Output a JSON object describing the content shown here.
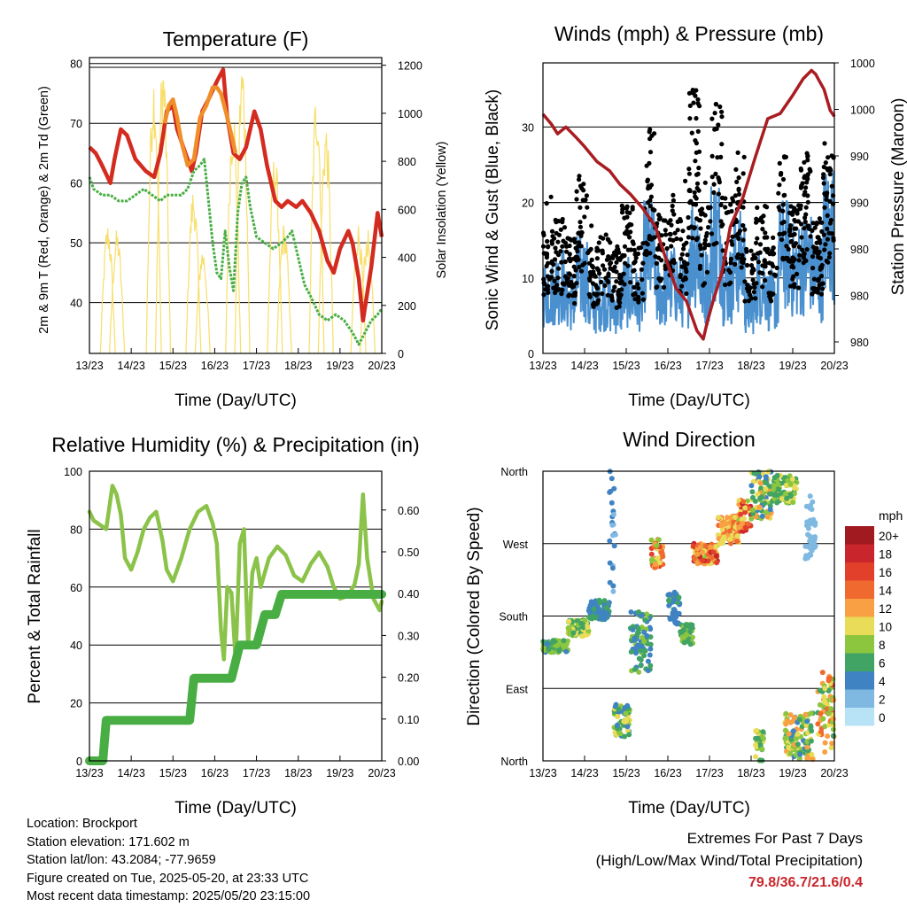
{
  "panels": {
    "temperature": {
      "title": "Temperature (F)",
      "ylabel_left": "2m & 9m T (Red, Orange) & 2m Td (Green)",
      "ylabel_right": "Solar Insolation (Yellow)",
      "xlabel": "Time (Day/UTC)"
    },
    "winds": {
      "title": "Winds (mph) & Pressure (mb)",
      "ylabel_left": "Sonic Wind & Gust (Blue, Black)",
      "ylabel_right": "Station Pressure (Maroon)",
      "xlabel": "Time (Day/UTC)"
    },
    "humidity": {
      "title": "Relative Humidity (%) & Precipitation (in)",
      "ylabel_left": "Percent & Total Rainfall",
      "xlabel": "Time (Day/UTC)"
    },
    "direction": {
      "title": "Wind Direction",
      "ylabel_left": "Direction (Colored By Speed)",
      "xlabel": "Time (Day/UTC)",
      "legend_title": "mph"
    }
  },
  "info": {
    "location": "Location: Brockport",
    "elevation": "Station elevation: 171.602 m",
    "latlon": "Station lat/lon: 43.2084; -77.9659",
    "created": "Figure created on Tue, 2025-05-20, at 23:33 UTC",
    "recent": "Most recent data timestamp: 2025/05/20 23:15:00"
  },
  "extremes": {
    "line1": "Extremes For Past 7 Days",
    "line2": "(High/Low/Max Wind/Total Precipitation)",
    "values": "79.8/36.7/21.6/0.4"
  },
  "chart_data": [
    {
      "id": "temperature",
      "type": "line",
      "title": "Temperature (F)",
      "xlabel": "Time (Day/UTC)",
      "ylabel": "2m & 9m T (Red, Orange) & 2m Td (Green)",
      "ylabel_right": "Solar Insolation (Yellow)",
      "x_ticks": [
        "13/23",
        "14/23",
        "15/23",
        "16/23",
        "17/23",
        "18/23",
        "19/23",
        "20/23"
      ],
      "xlim": [
        0,
        7
      ],
      "ylim": [
        31.5,
        81
      ],
      "yticks": [
        40,
        50,
        60,
        70,
        80
      ],
      "ylim_right": [
        0,
        1232
      ],
      "yticks_right": [
        0,
        200,
        400,
        600,
        800,
        1000,
        1200
      ],
      "grid": true,
      "series": [
        {
          "color": "#d42b20",
          "x": [
            0,
            0.15,
            0.3,
            0.5,
            0.6,
            0.75,
            0.9,
            1.1,
            1.35,
            1.55,
            1.7,
            1.85,
            2.0,
            2.1,
            2.3,
            2.45,
            2.55,
            2.7,
            2.85,
            3.05,
            3.2,
            3.3,
            3.45,
            3.6,
            3.75,
            3.95,
            4.1,
            4.25,
            4.45,
            4.6,
            4.75,
            4.95,
            5.1,
            5.3,
            5.5,
            5.7,
            5.85,
            6.0,
            6.2,
            6.3,
            6.45,
            6.55,
            6.75,
            6.9,
            7.0
          ],
          "y": [
            66,
            65,
            63,
            60,
            64,
            69,
            68,
            64,
            62,
            61,
            65,
            72,
            73,
            69,
            65,
            62,
            65,
            72,
            74,
            77,
            79,
            71,
            65,
            64,
            66,
            72,
            69,
            63,
            57,
            56,
            57,
            56,
            57,
            55,
            52,
            47,
            45,
            49,
            52,
            50,
            44,
            37,
            46,
            55,
            51
          ]
        },
        {
          "color": "#f08e2a",
          "x": [
            1.8,
            1.9,
            2.0,
            2.1,
            2.2,
            2.35,
            2.5,
            2.65,
            2.8,
            2.95,
            3.05,
            3.15,
            3.3,
            3.5
          ],
          "y": [
            70,
            73,
            74,
            71,
            67,
            63,
            64,
            71,
            73,
            76,
            76,
            75,
            71,
            65
          ]
        },
        {
          "color": "#48ae44",
          "x": [
            0,
            0.1,
            0.3,
            0.5,
            0.7,
            0.9,
            1.1,
            1.3,
            1.5,
            1.7,
            1.85,
            2.0,
            2.2,
            2.35,
            2.5,
            2.65,
            2.75,
            2.85,
            2.95,
            3.05,
            3.15,
            3.25,
            3.35,
            3.45,
            3.55,
            3.65,
            3.75,
            3.85,
            4.0,
            4.2,
            4.4,
            4.6,
            4.75,
            4.85,
            4.95,
            5.05,
            5.15,
            5.3,
            5.5,
            5.7,
            5.9,
            6.1,
            6.3,
            6.45,
            6.6,
            6.75,
            6.9,
            7.0
          ],
          "y": [
            61,
            59,
            58,
            58,
            57,
            57,
            58,
            59,
            58,
            57,
            58,
            58,
            58,
            59,
            62,
            63,
            64,
            57,
            50,
            45,
            44,
            52,
            46,
            42,
            55,
            60,
            61,
            56,
            51,
            50,
            49,
            50,
            51,
            52,
            49,
            46,
            43,
            41,
            38,
            37,
            38,
            37,
            35,
            33,
            35,
            37,
            38,
            39
          ]
        }
      ],
      "solar": {
        "color": "#f8de6a",
        "day_centers": [
          0.55,
          1.65,
          2.6,
          3.55,
          4.55,
          5.55,
          6.55
        ],
        "peaks": [
          550,
          520,
          1200,
          1250,
          700,
          450,
          1050,
          1250,
          850,
          550,
          1130,
          980
        ]
      }
    },
    {
      "id": "winds",
      "type": "scatter",
      "title": "Winds (mph) & Pressure (mb)",
      "xlabel": "Time (Day/UTC)",
      "ylabel": "Sonic Wind & Gust (Blue, Black)",
      "ylabel_right": "Station Pressure (Maroon)",
      "x_ticks": [
        "13/23",
        "14/23",
        "15/23",
        "16/23",
        "17/23",
        "18/23",
        "19/23",
        "20/23"
      ],
      "xlim": [
        0,
        7
      ],
      "ylim": [
        0,
        38.5
      ],
      "yticks": [
        0,
        10,
        20,
        30
      ],
      "yticks_right": [
        "980",
        "980",
        "980",
        "990",
        "990",
        "1000",
        "1000"
      ],
      "grid": true,
      "wind_mean_by_half_day": [
        8,
        9,
        7,
        10,
        6,
        7,
        6,
        8,
        7,
        13,
        8,
        9,
        8,
        14,
        9,
        15,
        9,
        12,
        6,
        9,
        7,
        13,
        11,
        12,
        10,
        16
      ],
      "gust_mean_by_half_day": [
        12,
        13,
        11,
        17,
        10,
        12,
        10,
        14,
        11,
        21,
        13,
        15,
        13,
        25,
        14,
        24,
        15,
        19,
        10,
        14,
        11,
        19,
        14,
        19,
        13,
        20
      ],
      "pressure": {
        "color": "#a91d22",
        "x": [
          0,
          0.2,
          0.35,
          0.55,
          0.8,
          1.0,
          1.3,
          1.6,
          1.85,
          2.1,
          2.4,
          2.7,
          2.95,
          3.2,
          3.45,
          3.7,
          3.85,
          3.95,
          4.1,
          4.3,
          4.5,
          4.8,
          5.1,
          5.4,
          5.7,
          6.0,
          6.25,
          6.45,
          6.55,
          6.65,
          6.75,
          6.9,
          7.0
        ],
        "y": [
          31.7,
          30.4,
          29.1,
          30.0,
          28.6,
          27.4,
          25.4,
          24.2,
          22.4,
          21.1,
          19.2,
          16.8,
          12.6,
          8.6,
          6.9,
          3.0,
          1.9,
          4.2,
          7.2,
          10.7,
          16.8,
          20.6,
          26.0,
          31.1,
          31.8,
          34.2,
          36.4,
          37.5,
          37.0,
          36.0,
          35.0,
          32.2,
          31.4
        ]
      }
    },
    {
      "id": "humidity",
      "type": "line",
      "title": "Relative Humidity (%) & Precipitation (in)",
      "xlabel": "Time (Day/UTC)",
      "ylabel": "Percent & Total Rainfall",
      "x_ticks": [
        "13/23",
        "14/23",
        "15/23",
        "16/23",
        "17/23",
        "18/23",
        "19/23",
        "20/23"
      ],
      "xlim": [
        0,
        7
      ],
      "ylim": [
        0,
        100
      ],
      "yticks": [
        0,
        20,
        40,
        60,
        80,
        100
      ],
      "yticks_right": [
        "0.00",
        "0.10",
        "0.20",
        "0.30",
        "0.40",
        "0.50",
        "0.60"
      ],
      "grid": true,
      "series": [
        {
          "color": "#8bc34a",
          "x": [
            0,
            0.1,
            0.2,
            0.4,
            0.55,
            0.65,
            0.75,
            0.85,
            1.0,
            1.15,
            1.3,
            1.45,
            1.6,
            1.75,
            1.85,
            2.0,
            2.2,
            2.4,
            2.6,
            2.8,
            2.95,
            3.05,
            3.15,
            3.22,
            3.3,
            3.4,
            3.5,
            3.6,
            3.7,
            3.8,
            3.9,
            4.0,
            4.1,
            4.3,
            4.5,
            4.7,
            4.9,
            5.1,
            5.3,
            5.5,
            5.7,
            5.85,
            6.0,
            6.2,
            6.35,
            6.45,
            6.55,
            6.65,
            6.8,
            6.95,
            7.0
          ],
          "y": [
            86,
            83,
            82,
            80,
            95,
            92,
            85,
            70,
            66,
            72,
            80,
            84,
            86,
            76,
            66,
            62,
            70,
            80,
            86,
            88,
            82,
            75,
            45,
            35,
            60,
            58,
            35,
            75,
            80,
            40,
            65,
            70,
            60,
            70,
            74,
            71,
            64,
            62,
            68,
            72,
            67,
            60,
            56,
            57,
            61,
            68,
            92,
            70,
            56,
            52,
            55
          ]
        },
        {
          "color": "#48ae44",
          "step": true,
          "x": [
            0,
            0.32,
            0.4,
            1.7,
            1.8,
            2.4,
            2.5,
            3.05,
            3.15,
            3.4,
            3.6,
            4.0,
            4.2,
            4.45,
            4.6,
            7.0
          ],
          "y": [
            0,
            0,
            14,
            14,
            14,
            14,
            28.5,
            28.5,
            28.5,
            28.5,
            40,
            40,
            50.5,
            50.5,
            57.5,
            57.5
          ]
        }
      ]
    },
    {
      "id": "direction",
      "type": "scatter",
      "title": "Wind Direction",
      "xlabel": "Time (Day/UTC)",
      "ylabel": "Direction (Colored By Speed)",
      "x_ticks": [
        "13/23",
        "14/23",
        "15/23",
        "16/23",
        "17/23",
        "18/23",
        "19/23",
        "20/23"
      ],
      "xlim": [
        0,
        7
      ],
      "ylim": [
        0,
        360
      ],
      "y_categories": [
        "North",
        "East",
        "South",
        "West",
        "North"
      ],
      "grid": true,
      "legend": {
        "title": "mph",
        "labels": [
          "20+",
          "18",
          "16",
          "14",
          "12",
          "10",
          "8",
          "6",
          "4",
          "2",
          "0"
        ],
        "colors": [
          "#a01a20",
          "#c8262c",
          "#e2402b",
          "#f06a30",
          "#f8a043",
          "#e9dc58",
          "#8cc63f",
          "#41a364",
          "#3f83c3",
          "#7fb9e2",
          "#b8e2f5"
        ]
      },
      "clusters": [
        {
          "x": [
            0,
            0.6
          ],
          "dir": [
            135,
            150
          ],
          "speed": [
            4,
            9
          ]
        },
        {
          "x": [
            0.6,
            1.1
          ],
          "dir": [
            155,
            175
          ],
          "speed": [
            6,
            11
          ]
        },
        {
          "x": [
            1.1,
            1.6
          ],
          "dir": [
            175,
            200
          ],
          "speed": [
            3,
            7
          ]
        },
        {
          "x": [
            1.6,
            1.75
          ],
          "dir": [
            200,
            360
          ],
          "speed": [
            2,
            5
          ]
        },
        {
          "x": [
            1.7,
            2.1
          ],
          "dir": [
            30,
            70
          ],
          "speed": [
            4,
            11
          ]
        },
        {
          "x": [
            2.1,
            2.6
          ],
          "dir": [
            110,
            185
          ],
          "speed": [
            3,
            8
          ]
        },
        {
          "x": [
            2.6,
            2.9
          ],
          "dir": [
            240,
            275
          ],
          "speed": [
            8,
            16
          ]
        },
        {
          "x": [
            3.0,
            3.3
          ],
          "dir": [
            170,
            210
          ],
          "speed": [
            3,
            6
          ]
        },
        {
          "x": [
            3.3,
            3.6
          ],
          "dir": [
            145,
            170
          ],
          "speed": [
            5,
            9
          ]
        },
        {
          "x": [
            3.6,
            4.2
          ],
          "dir": [
            245,
            270
          ],
          "speed": [
            8,
            18
          ]
        },
        {
          "x": [
            4.2,
            4.7
          ],
          "dir": [
            270,
            305
          ],
          "speed": [
            9,
            15
          ]
        },
        {
          "x": [
            4.7,
            5.0
          ],
          "dir": [
            285,
            325
          ],
          "speed": [
            8,
            18
          ]
        },
        {
          "x": [
            5.0,
            5.5
          ],
          "dir": [
            300,
            360
          ],
          "speed": [
            3,
            12
          ]
        },
        {
          "x": [
            5.5,
            6.1
          ],
          "dir": [
            320,
            355
          ],
          "speed": [
            5,
            11
          ]
        },
        {
          "x": [
            5.1,
            5.3
          ],
          "dir": [
            0,
            40
          ],
          "speed": [
            6,
            11
          ]
        },
        {
          "x": [
            5.8,
            6.5
          ],
          "dir": [
            0,
            60
          ],
          "speed": [
            4,
            13
          ]
        },
        {
          "x": [
            6.3,
            6.55
          ],
          "dir": [
            250,
            330
          ],
          "speed": [
            1,
            3
          ]
        },
        {
          "x": [
            6.6,
            7.0
          ],
          "dir": [
            10,
            110
          ],
          "speed": [
            6,
            16
          ]
        }
      ]
    }
  ]
}
